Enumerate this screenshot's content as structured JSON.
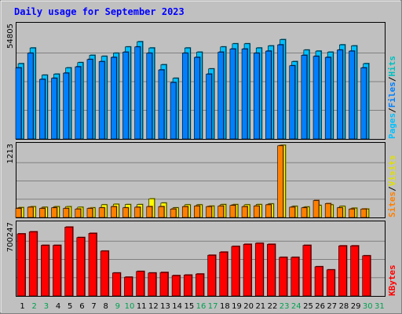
{
  "chart_data": [
    {
      "type": "bar",
      "title": "Daily usage for September 2023",
      "categories": [
        "1",
        "2",
        "3",
        "4",
        "5",
        "6",
        "7",
        "8",
        "9",
        "10",
        "11",
        "12",
        "13",
        "14",
        "15",
        "16",
        "17",
        "18",
        "19",
        "20",
        "21",
        "22",
        "23",
        "24",
        "25",
        "26",
        "27",
        "28",
        "29",
        "30",
        "31"
      ],
      "weekend_days": [
        2,
        3,
        9,
        10,
        16,
        17,
        23,
        24,
        30,
        31
      ],
      "y_tick_label": "54805",
      "ylim": [
        0,
        54805
      ],
      "legend": [
        "Pages",
        "/",
        "Files",
        "/",
        "Hits"
      ],
      "series": [
        {
          "name": "Hits",
          "color": "#00c0ff",
          "values": [
            36000,
            43500,
            30500,
            31000,
            34000,
            36500,
            40000,
            39500,
            41000,
            44000,
            46500,
            43500,
            35500,
            29000,
            43500,
            41500,
            33500,
            44000,
            45500,
            45500,
            43500,
            44500,
            47500,
            37000,
            42500,
            42000,
            41500,
            45000,
            44500,
            36000,
            0
          ]
        },
        {
          "name": "Files",
          "color": "#0080ff",
          "values": [
            34000,
            41000,
            28500,
            29000,
            31500,
            34500,
            38000,
            37000,
            39000,
            41500,
            44000,
            41000,
            33000,
            27000,
            41000,
            39000,
            31000,
            41500,
            43000,
            43000,
            41000,
            42000,
            45000,
            35000,
            40000,
            39500,
            39000,
            42500,
            42000,
            34000,
            0
          ]
        },
        {
          "name": "Pages",
          "color": "#00e0e0",
          "values": [
            0,
            0,
            0,
            0,
            0,
            0,
            0,
            0,
            0,
            0,
            0,
            0,
            0,
            0,
            0,
            0,
            0,
            0,
            0,
            0,
            0,
            0,
            0,
            0,
            0,
            0,
            0,
            0,
            0,
            0,
            0
          ]
        }
      ]
    },
    {
      "type": "bar",
      "y_tick_label": "1213",
      "ylim": [
        0,
        1213
      ],
      "legend": [
        "Sites",
        "/",
        "Visits"
      ],
      "series": [
        {
          "name": "Visits",
          "color": "#ffff00",
          "values": [
            165,
            180,
            170,
            180,
            180,
            170,
            160,
            210,
            220,
            215,
            215,
            310,
            240,
            160,
            210,
            210,
            190,
            215,
            215,
            210,
            215,
            225,
            1200,
            185,
            175,
            200,
            210,
            185,
            155,
            140,
            0
          ]
        },
        {
          "name": "Sites",
          "color": "#ff8000",
          "values": [
            150,
            170,
            150,
            160,
            150,
            140,
            150,
            160,
            180,
            160,
            170,
            180,
            180,
            140,
            180,
            190,
            180,
            190,
            200,
            180,
            190,
            210,
            1190,
            170,
            160,
            280,
            230,
            160,
            140,
            140,
            0
          ]
        }
      ]
    },
    {
      "type": "bar",
      "y_tick_label": "700247",
      "ylim": [
        0,
        700247
      ],
      "legend": [
        "KBytes"
      ],
      "series": [
        {
          "name": "KBytes",
          "color": "#ff0000",
          "values": [
            595000,
            615000,
            485000,
            485000,
            660000,
            560000,
            600000,
            430000,
            220000,
            180000,
            235000,
            220000,
            225000,
            195000,
            200000,
            210000,
            390000,
            420000,
            475000,
            495000,
            505000,
            495000,
            370000,
            370000,
            485000,
            280000,
            250000,
            480000,
            480000,
            385000,
            0
          ]
        }
      ]
    }
  ]
}
